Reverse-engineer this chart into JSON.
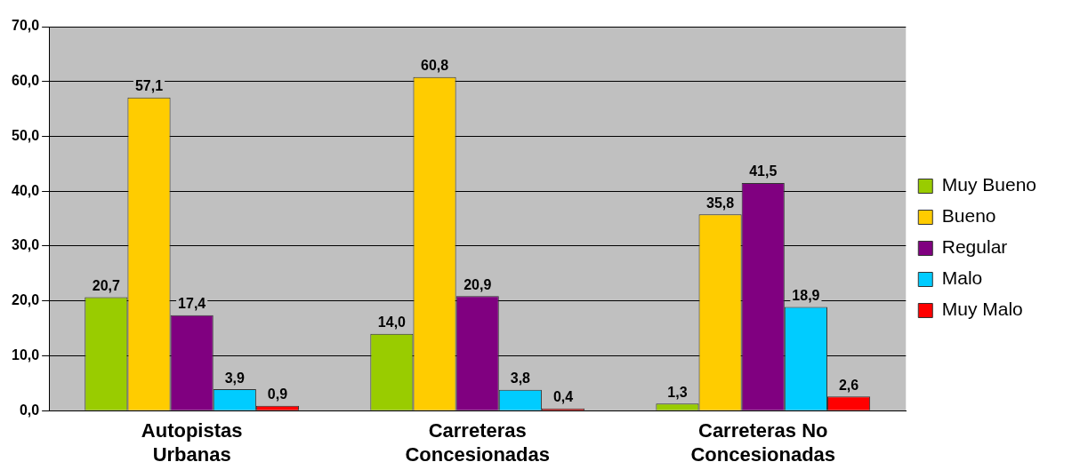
{
  "chart_data": {
    "type": "bar",
    "categories": [
      "Autopistas Urbanas",
      "Carreteras Concesionadas",
      "Carreteras No Concesionadas"
    ],
    "series": [
      {
        "name": "Muy Bueno",
        "color": "#99cc00",
        "values": [
          20.7,
          14.0,
          1.3
        ],
        "value_labels": [
          "20,7",
          "14,0",
          "1,3"
        ]
      },
      {
        "name": "Bueno",
        "color": "#ffcc00",
        "values": [
          57.1,
          60.8,
          35.8
        ],
        "value_labels": [
          "57,1",
          "60,8",
          "35,8"
        ]
      },
      {
        "name": "Regular",
        "color": "#800080",
        "values": [
          17.4,
          20.9,
          41.5
        ],
        "value_labels": [
          "17,4",
          "20,9",
          "41,5"
        ]
      },
      {
        "name": "Malo",
        "color": "#00ccff",
        "values": [
          3.9,
          3.8,
          18.9
        ],
        "value_labels": [
          "3,9",
          "3,8",
          "18,9"
        ]
      },
      {
        "name": "Muy Malo",
        "color": "#ff0000",
        "values": [
          0.9,
          0.4,
          2.6
        ],
        "value_labels": [
          "0,9",
          "0,4",
          "2,6"
        ]
      }
    ],
    "ylim": [
      0,
      70
    ],
    "yticks": [
      {
        "value": 0,
        "label": "0,0"
      },
      {
        "value": 10,
        "label": "10,0"
      },
      {
        "value": 20,
        "label": "20,0"
      },
      {
        "value": 30,
        "label": "30,0"
      },
      {
        "value": 40,
        "label": "40,0"
      },
      {
        "value": 50,
        "label": "50,0"
      },
      {
        "value": 60,
        "label": "60,0"
      },
      {
        "value": 70,
        "label": "70,0"
      }
    ],
    "grid": "y",
    "legend": "right"
  }
}
